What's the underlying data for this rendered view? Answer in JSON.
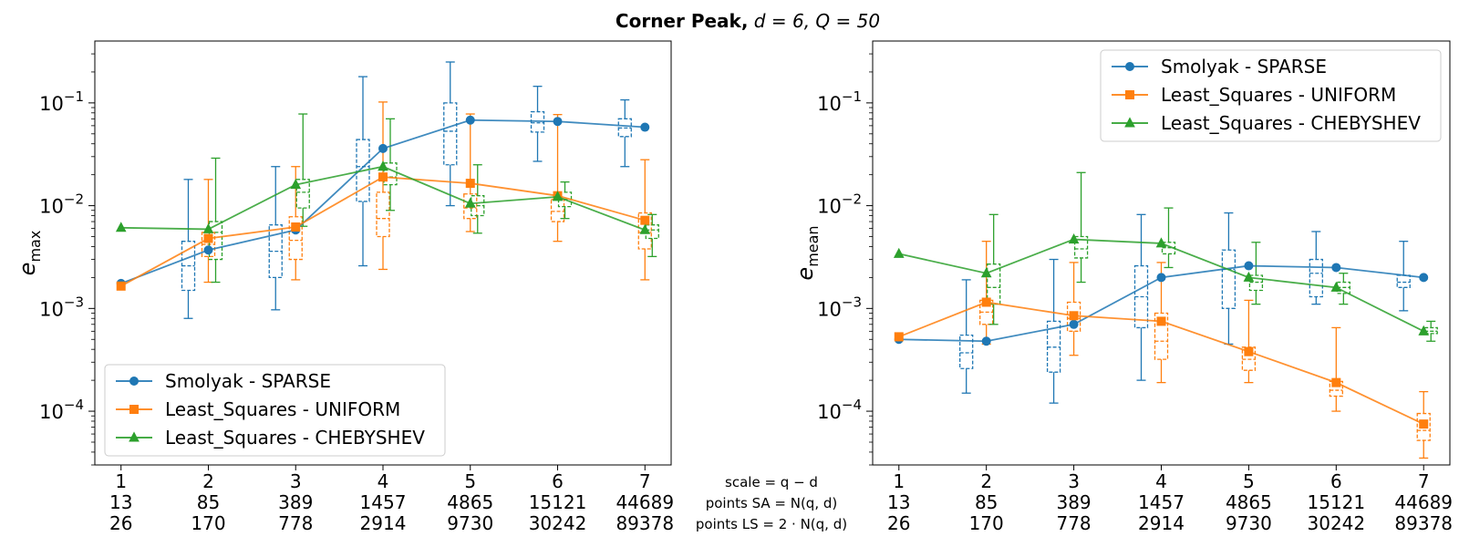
{
  "figure": {
    "title_bold": "Corner Peak,",
    "title_params": "d = 6, Q = 50",
    "center_labels": [
      "scale = q − d",
      "points SA = N(q, d)",
      "points LS = 2 · N(q, d)"
    ]
  },
  "x_tick_rows": {
    "scale": [
      "1",
      "2",
      "3",
      "4",
      "5",
      "6",
      "7"
    ],
    "points_sa": [
      "13",
      "85",
      "389",
      "1457",
      "4865",
      "15121",
      "44689"
    ],
    "points_ls": [
      "26",
      "170",
      "778",
      "2914",
      "9730",
      "30242",
      "89378"
    ]
  },
  "colors": {
    "sparse": "#1f77b4",
    "uniform": "#ff7f0e",
    "chebyshev": "#2ca02c"
  },
  "chart_data": [
    {
      "type": "line",
      "ylabel_main": "e",
      "ylabel_sub": "max",
      "yscale": "log",
      "ylim": [
        3e-05,
        0.4
      ],
      "x": [
        1,
        2,
        3,
        4,
        5,
        6,
        7
      ],
      "yticks": [
        {
          "label": "10",
          "exp": "−4",
          "value": 0.0001
        },
        {
          "label": "10",
          "exp": "−3",
          "value": 0.001
        },
        {
          "label": "10",
          "exp": "−2",
          "value": 0.01
        },
        {
          "label": "10",
          "exp": "−1",
          "value": 0.1
        }
      ],
      "legend_position": "lower-left",
      "series": [
        {
          "name": "Smolyak - SPARSE",
          "key": "sparse",
          "marker": "circle",
          "values": [
            0.00175,
            0.0037,
            0.0058,
            0.036,
            0.068,
            0.066,
            0.058
          ],
          "boxes": [
            null,
            {
              "low": 0.0008,
              "q1": 0.0015,
              "med": 0.0026,
              "q3": 0.0045,
              "high": 0.018
            },
            {
              "low": 0.00097,
              "q1": 0.002,
              "med": 0.0036,
              "q3": 0.0065,
              "high": 0.024
            },
            {
              "low": 0.0026,
              "q1": 0.011,
              "med": 0.024,
              "q3": 0.044,
              "high": 0.18
            },
            {
              "low": 0.01,
              "q1": 0.025,
              "med": 0.053,
              "q3": 0.1,
              "high": 0.25
            },
            {
              "low": 0.027,
              "q1": 0.052,
              "med": 0.064,
              "q3": 0.082,
              "high": 0.145
            },
            {
              "low": 0.024,
              "q1": 0.047,
              "med": 0.057,
              "q3": 0.07,
              "high": 0.107
            }
          ]
        },
        {
          "name": "Least_Squares - UNIFORM",
          "key": "uniform",
          "marker": "square",
          "values": [
            0.00165,
            0.0048,
            0.0062,
            0.019,
            0.0165,
            0.0125,
            0.0072
          ],
          "boxes": [
            null,
            {
              "low": 0.0018,
              "q1": 0.0032,
              "med": 0.0042,
              "q3": 0.0055,
              "high": 0.018
            },
            {
              "low": 0.0019,
              "q1": 0.003,
              "med": 0.0046,
              "q3": 0.0078,
              "high": 0.024
            },
            {
              "low": 0.0024,
              "q1": 0.005,
              "med": 0.0075,
              "q3": 0.0135,
              "high": 0.102
            },
            {
              "low": 0.0056,
              "q1": 0.0075,
              "med": 0.0095,
              "q3": 0.013,
              "high": 0.078
            },
            {
              "low": 0.0045,
              "q1": 0.007,
              "med": 0.0088,
              "q3": 0.0115,
              "high": 0.077
            },
            {
              "low": 0.0019,
              "q1": 0.0038,
              "med": 0.0055,
              "q3": 0.0085,
              "high": 0.028
            }
          ]
        },
        {
          "name": "Least_Squares - CHEBYSHEV",
          "key": "chebyshev",
          "marker": "triangle",
          "values": [
            0.0061,
            0.0059,
            0.016,
            0.024,
            0.0105,
            0.0122,
            0.0058
          ],
          "boxes": [
            null,
            {
              "low": 0.0018,
              "q1": 0.003,
              "med": 0.0055,
              "q3": 0.007,
              "high": 0.029
            },
            {
              "low": 0.0063,
              "q1": 0.0095,
              "med": 0.0135,
              "q3": 0.018,
              "high": 0.078
            },
            {
              "low": 0.009,
              "q1": 0.016,
              "med": 0.019,
              "q3": 0.026,
              "high": 0.07
            },
            {
              "low": 0.0054,
              "q1": 0.008,
              "med": 0.01,
              "q3": 0.0125,
              "high": 0.025
            },
            {
              "low": 0.0075,
              "q1": 0.0098,
              "med": 0.0115,
              "q3": 0.0135,
              "high": 0.017
            },
            {
              "low": 0.0032,
              "q1": 0.0048,
              "med": 0.0058,
              "q3": 0.0065,
              "high": 0.0082
            }
          ]
        }
      ]
    },
    {
      "type": "line",
      "ylabel_main": "e",
      "ylabel_sub": "mean",
      "yscale": "log",
      "ylim": [
        3e-05,
        0.4
      ],
      "x": [
        1,
        2,
        3,
        4,
        5,
        6,
        7
      ],
      "yticks": [
        {
          "label": "10",
          "exp": "−4",
          "value": 0.0001
        },
        {
          "label": "10",
          "exp": "−3",
          "value": 0.001
        },
        {
          "label": "10",
          "exp": "−2",
          "value": 0.01
        },
        {
          "label": "10",
          "exp": "−1",
          "value": 0.1
        }
      ],
      "legend_position": "top-right",
      "series": [
        {
          "name": "Smolyak - SPARSE",
          "key": "sparse",
          "marker": "circle",
          "values": [
            0.0005,
            0.00048,
            0.0007,
            0.002,
            0.0026,
            0.0025,
            0.002
          ],
          "boxes": [
            null,
            {
              "low": 0.00015,
              "q1": 0.00026,
              "med": 0.00037,
              "q3": 0.00055,
              "high": 0.0019
            },
            {
              "low": 0.00012,
              "q1": 0.00024,
              "med": 0.00042,
              "q3": 0.00075,
              "high": 0.003
            },
            {
              "low": 0.0002,
              "q1": 0.00065,
              "med": 0.0013,
              "q3": 0.0026,
              "high": 0.0082
            },
            {
              "low": 0.00045,
              "q1": 0.001,
              "med": 0.0024,
              "q3": 0.0037,
              "high": 0.0085
            },
            {
              "low": 0.0011,
              "q1": 0.0013,
              "med": 0.0022,
              "q3": 0.003,
              "high": 0.0056
            },
            {
              "low": 0.00095,
              "q1": 0.0016,
              "med": 0.0018,
              "q3": 0.0021,
              "high": 0.0045
            }
          ]
        },
        {
          "name": "Least_Squares - UNIFORM",
          "key": "uniform",
          "marker": "square",
          "values": [
            0.00053,
            0.00115,
            0.00085,
            0.00075,
            0.00038,
            0.00019,
            7.5e-05
          ],
          "boxes": [
            null,
            {
              "low": 0.00045,
              "q1": 0.0007,
              "med": 0.00092,
              "q3": 0.0012,
              "high": 0.0045
            },
            {
              "low": 0.00035,
              "q1": 0.0006,
              "med": 0.0008,
              "q3": 0.00115,
              "high": 0.0028
            },
            {
              "low": 0.00019,
              "q1": 0.00032,
              "med": 0.00048,
              "q3": 0.0009,
              "high": 0.0028
            },
            {
              "low": 0.00019,
              "q1": 0.00025,
              "med": 0.00032,
              "q3": 0.00042,
              "high": 0.0012
            },
            {
              "low": 0.0001,
              "q1": 0.00014,
              "med": 0.00016,
              "q3": 0.000195,
              "high": 0.00065
            },
            {
              "low": 3.5e-05,
              "q1": 5.2e-05,
              "med": 6.5e-05,
              "q3": 9.5e-05,
              "high": 0.000155
            }
          ]
        },
        {
          "name": "Least_Squares - CHEBYSHEV",
          "key": "chebyshev",
          "marker": "triangle",
          "values": [
            0.0034,
            0.0022,
            0.0047,
            0.0043,
            0.002,
            0.0016,
            0.0006
          ],
          "boxes": [
            null,
            {
              "low": 0.0007,
              "q1": 0.0011,
              "med": 0.0016,
              "q3": 0.0027,
              "high": 0.0082
            },
            {
              "low": 0.0018,
              "q1": 0.0031,
              "med": 0.0038,
              "q3": 0.005,
              "high": 0.021
            },
            {
              "low": 0.0025,
              "q1": 0.0034,
              "med": 0.0039,
              "q3": 0.0044,
              "high": 0.0095
            },
            {
              "low": 0.0011,
              "q1": 0.0015,
              "med": 0.0018,
              "q3": 0.0021,
              "high": 0.0044
            },
            {
              "low": 0.0011,
              "q1": 0.0014,
              "med": 0.0016,
              "q3": 0.0018,
              "high": 0.0022
            },
            {
              "low": 0.00048,
              "q1": 0.00057,
              "med": 0.0006,
              "q3": 0.00065,
              "high": 0.00075
            }
          ]
        }
      ]
    }
  ]
}
